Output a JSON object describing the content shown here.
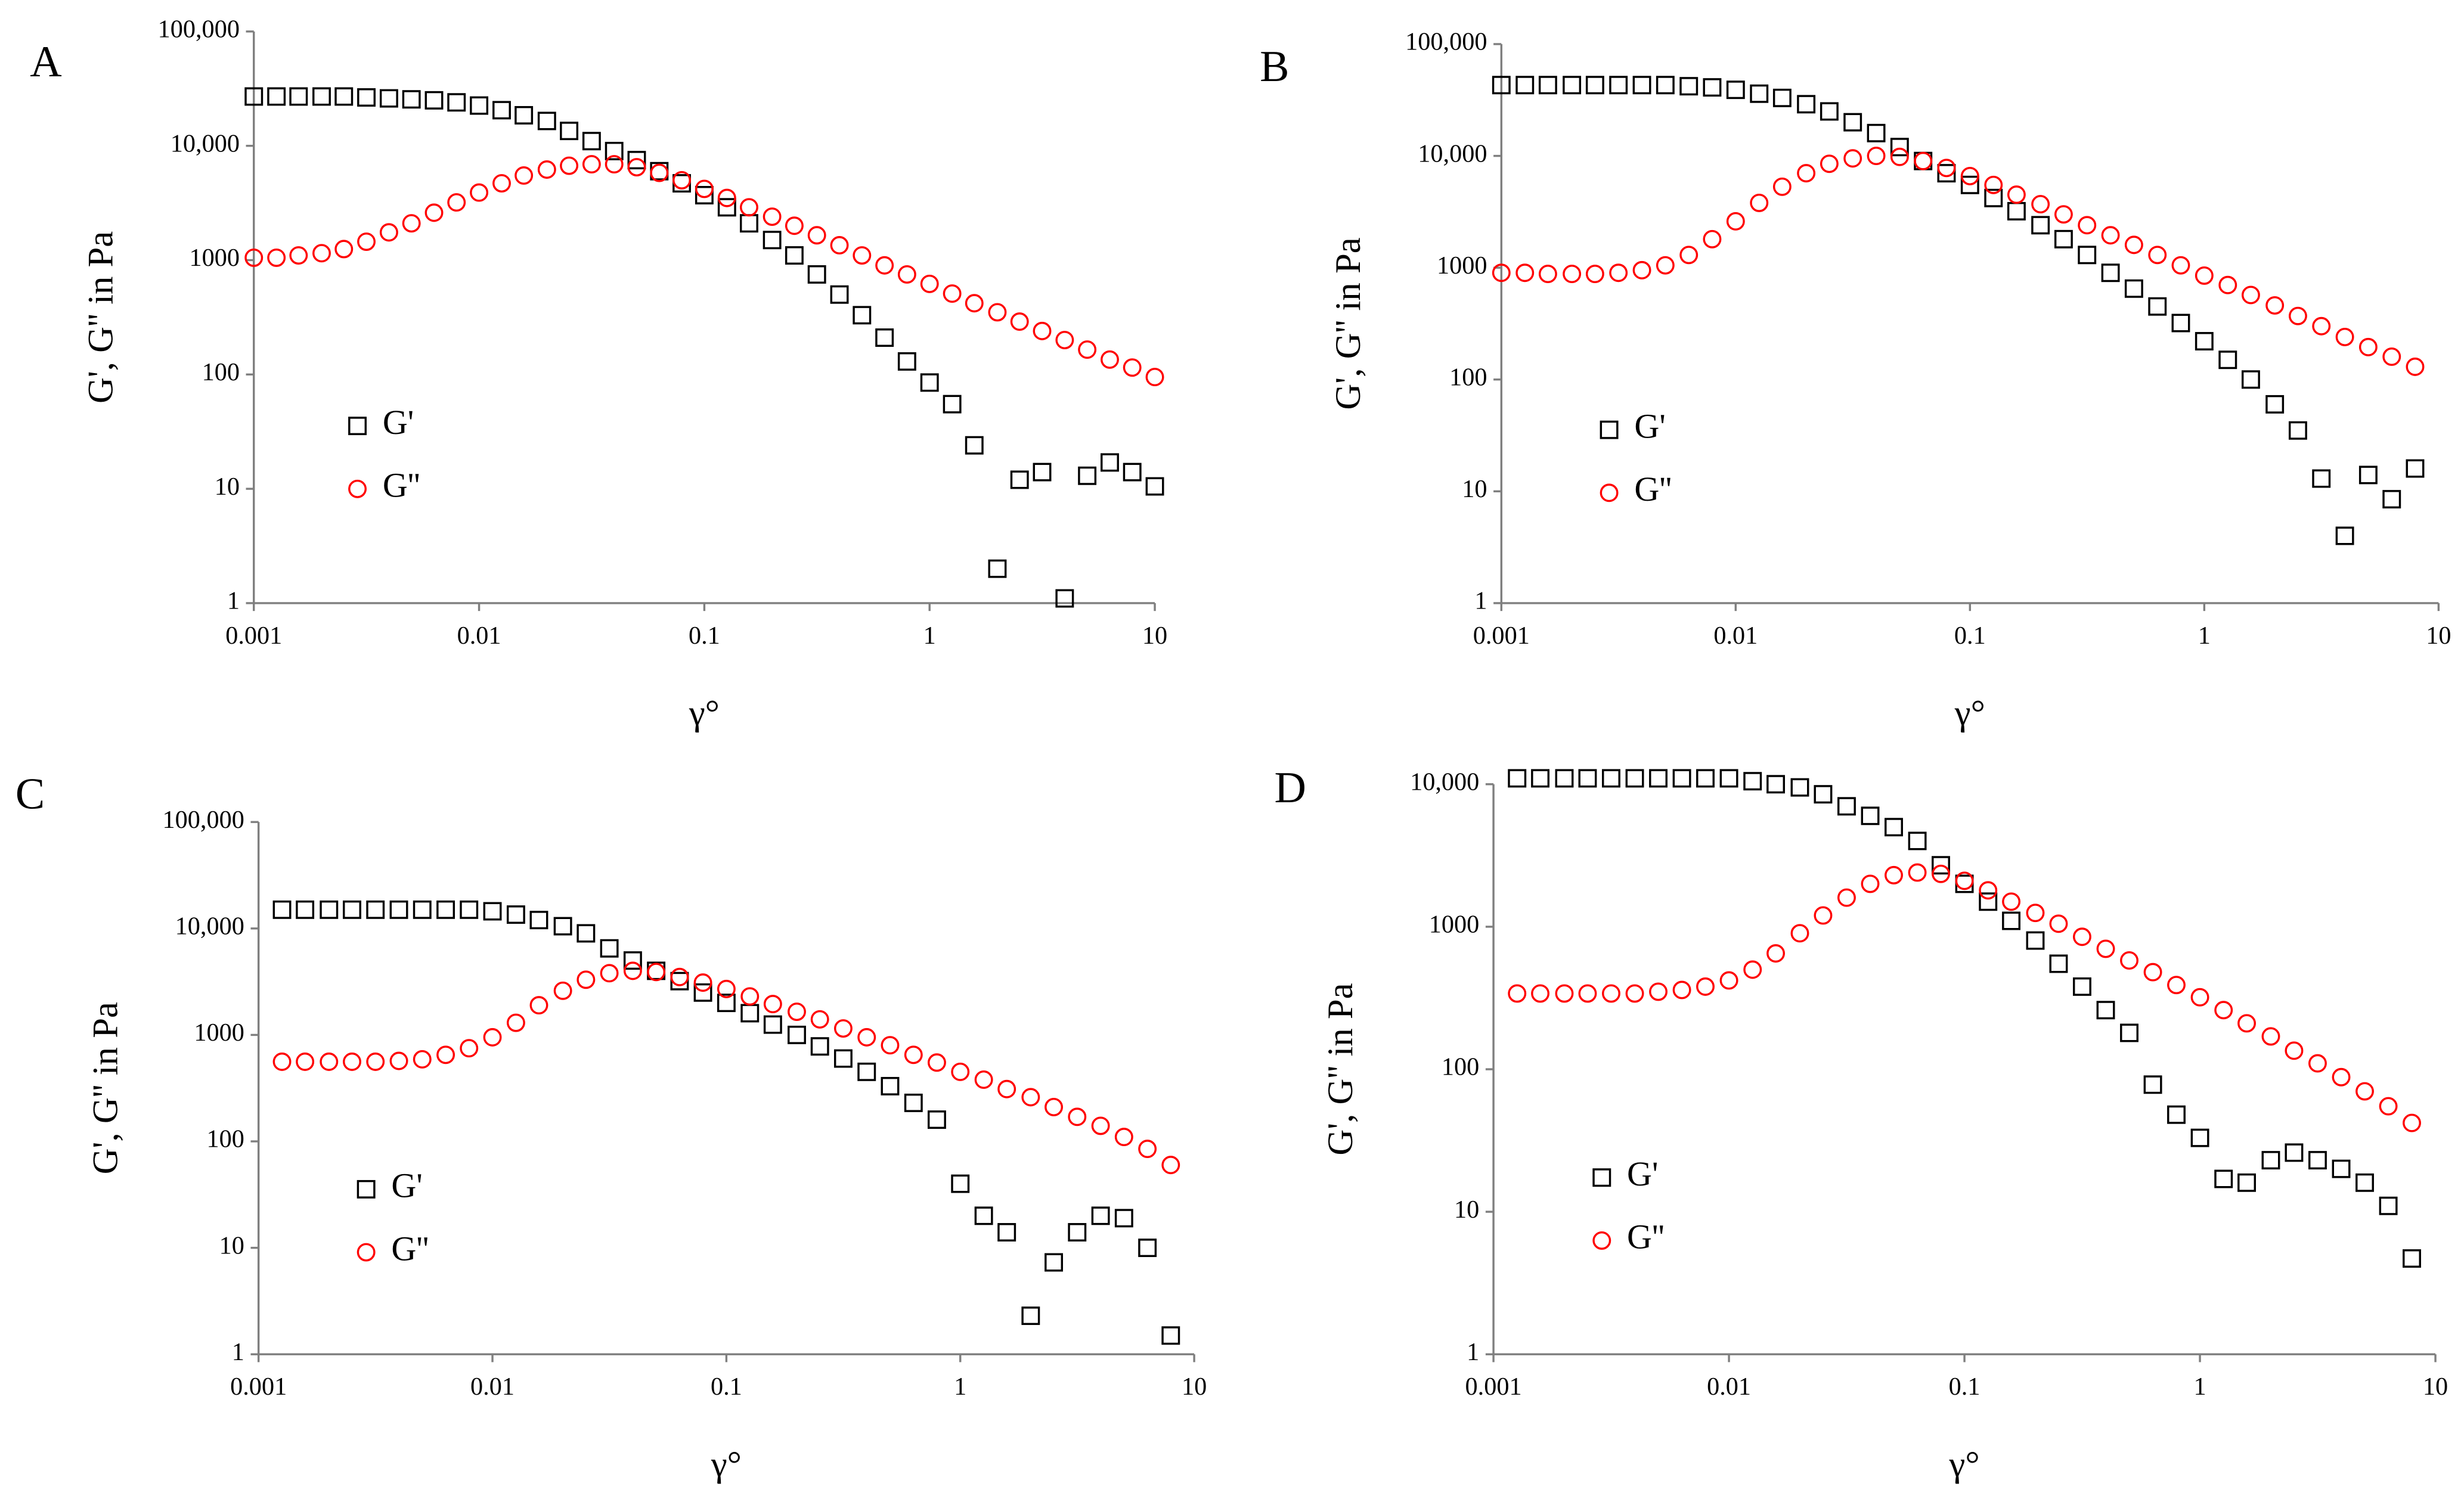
{
  "chart_data": [
    {
      "type": "scatter",
      "label": "A",
      "ylabel": "G', G'' in Pa",
      "xlabel": "γ°",
      "log_x": true,
      "log_y": true,
      "grid": false,
      "legend": "center left",
      "xlim": [
        0.001,
        10
      ],
      "ylim": [
        1,
        100000
      ],
      "xticks": [
        0.001,
        0.01,
        0.1,
        1,
        10
      ],
      "yticks": [
        1,
        10,
        100,
        1000,
        {
          "value": 10000,
          "label": "10,000"
        },
        {
          "value": 100000,
          "label": "100,000"
        }
      ],
      "x": [
        0.001,
        0.00126,
        0.00158,
        0.002,
        0.00251,
        0.00316,
        0.00398,
        0.00501,
        0.00631,
        0.00794,
        0.01,
        0.0126,
        0.0158,
        0.02,
        0.0251,
        0.0316,
        0.0398,
        0.0501,
        0.0631,
        0.0794,
        0.1,
        0.126,
        0.158,
        0.2,
        0.251,
        0.316,
        0.398,
        0.501,
        0.631,
        0.794,
        1,
        1.26,
        1.58,
        2,
        2.51,
        3.16,
        3.98,
        5.01,
        6.31,
        7.94,
        10
      ],
      "series": [
        {
          "name": "G'",
          "color": "#000000",
          "marker": "square",
          "values": [
            27000,
            27000,
            27000,
            27000,
            27000,
            26500,
            26000,
            25500,
            25000,
            24000,
            22500,
            20500,
            18500,
            16500,
            13500,
            11000,
            9000,
            7500,
            6000,
            4700,
            3700,
            2900,
            2100,
            1500,
            1100,
            750,
            500,
            330,
            210,
            130,
            85,
            55,
            24,
            2,
            12,
            14,
            1.1,
            13,
            17,
            14,
            10.5
          ]
        },
        {
          "name": "G''",
          "color": "#ff0000",
          "marker": "circle",
          "values": [
            1050,
            1050,
            1100,
            1150,
            1250,
            1450,
            1750,
            2100,
            2600,
            3200,
            3900,
            4700,
            5500,
            6200,
            6700,
            6900,
            6900,
            6500,
            5800,
            5000,
            4200,
            3500,
            2900,
            2400,
            2000,
            1650,
            1350,
            1100,
            900,
            750,
            620,
            510,
            420,
            350,
            290,
            240,
            200,
            165,
            135,
            115,
            95
          ]
        }
      ]
    },
    {
      "type": "scatter",
      "label": "B",
      "ylabel": "G', G'' in Pa",
      "xlabel": "γ°",
      "log_x": true,
      "log_y": true,
      "grid": false,
      "legend": "center left",
      "xlim": [
        0.001,
        10
      ],
      "ylim": [
        1,
        100000
      ],
      "xticks": [
        0.001,
        0.01,
        0.1,
        1,
        10
      ],
      "yticks": [
        1,
        10,
        100,
        1000,
        {
          "value": 10000,
          "label": "10,000"
        },
        {
          "value": 100000,
          "label": "100,000"
        }
      ],
      "x": [
        0.001,
        0.00126,
        0.00158,
        0.002,
        0.00251,
        0.00316,
        0.00398,
        0.00501,
        0.00631,
        0.00794,
        0.01,
        0.0126,
        0.0158,
        0.02,
        0.0251,
        0.0316,
        0.0398,
        0.0501,
        0.0631,
        0.0794,
        0.1,
        0.126,
        0.158,
        0.2,
        0.251,
        0.316,
        0.398,
        0.501,
        0.631,
        0.794,
        1,
        1.26,
        1.58,
        2,
        2.51,
        3.16,
        3.98,
        5.01,
        6.31,
        7.94
      ],
      "series": [
        {
          "name": "G'",
          "color": "#000000",
          "marker": "square",
          "values": [
            43000,
            43000,
            43000,
            43000,
            43000,
            43000,
            43000,
            43000,
            42000,
            41000,
            39000,
            36000,
            33000,
            29000,
            25000,
            20000,
            16000,
            12000,
            9000,
            7000,
            5500,
            4200,
            3200,
            2400,
            1800,
            1300,
            900,
            650,
            450,
            320,
            220,
            150,
            100,
            60,
            35,
            13,
            4,
            14,
            8.5,
            16
          ]
        },
        {
          "name": "G''",
          "color": "#ff0000",
          "marker": "circle",
          "values": [
            900,
            900,
            880,
            880,
            880,
            900,
            950,
            1050,
            1300,
            1800,
            2600,
            3800,
            5300,
            7000,
            8500,
            9500,
            10000,
            9800,
            9000,
            7800,
            6600,
            5500,
            4500,
            3700,
            3000,
            2400,
            1950,
            1600,
            1300,
            1050,
            850,
            700,
            570,
            460,
            370,
            300,
            240,
            195,
            160,
            130
          ]
        }
      ]
    },
    {
      "type": "scatter",
      "label": "C",
      "ylabel": "G', G'' in Pa",
      "xlabel": "γ°",
      "log_x": true,
      "log_y": true,
      "grid": false,
      "legend": "center left",
      "xlim": [
        0.001,
        10
      ],
      "ylim": [
        1,
        100000
      ],
      "xticks": [
        0.001,
        0.01,
        0.1,
        1,
        10
      ],
      "yticks": [
        1,
        10,
        100,
        1000,
        {
          "value": 10000,
          "label": "10,000"
        },
        {
          "value": 100000,
          "label": "100,000"
        }
      ],
      "x": [
        0.00126,
        0.00158,
        0.002,
        0.00251,
        0.00316,
        0.00398,
        0.00501,
        0.00631,
        0.00794,
        0.01,
        0.0126,
        0.0158,
        0.02,
        0.0251,
        0.0316,
        0.0398,
        0.0501,
        0.0631,
        0.0794,
        0.1,
        0.126,
        0.158,
        0.2,
        0.251,
        0.316,
        0.398,
        0.501,
        0.631,
        0.794,
        1,
        1.26,
        1.58,
        2,
        2.51,
        3.16,
        3.98,
        5.01,
        6.31,
        7.94
      ],
      "series": [
        {
          "name": "G'",
          "color": "#000000",
          "marker": "square",
          "values": [
            15000,
            15000,
            15000,
            15000,
            15000,
            15000,
            15000,
            15000,
            15000,
            14500,
            13500,
            12000,
            10500,
            9000,
            6500,
            5000,
            4000,
            3200,
            2500,
            2000,
            1600,
            1250,
            1000,
            780,
            600,
            450,
            330,
            230,
            160,
            40,
            20,
            14,
            2.3,
            7.3,
            14,
            20,
            19,
            10,
            1.5
          ]
        },
        {
          "name": "G''",
          "color": "#ff0000",
          "marker": "circle",
          "values": [
            560,
            560,
            560,
            560,
            560,
            570,
            590,
            650,
            750,
            950,
            1300,
            1900,
            2600,
            3300,
            3800,
            4000,
            3900,
            3500,
            3100,
            2700,
            2300,
            1950,
            1650,
            1400,
            1150,
            950,
            800,
            650,
            550,
            450,
            380,
            310,
            260,
            210,
            170,
            140,
            110,
            85,
            60
          ]
        }
      ]
    },
    {
      "type": "scatter",
      "label": "D",
      "ylabel": "G', G'' in Pa",
      "xlabel": "γ°",
      "log_x": true,
      "log_y": true,
      "grid": false,
      "legend": "center left",
      "xlim": [
        0.001,
        10
      ],
      "ylim": [
        1,
        10000
      ],
      "xticks": [
        0.001,
        0.01,
        0.1,
        1,
        10
      ],
      "yticks": [
        1,
        10,
        100,
        1000,
        {
          "value": 10000,
          "label": "10,000"
        }
      ],
      "x": [
        0.00126,
        0.00158,
        0.002,
        0.00251,
        0.00316,
        0.00398,
        0.00501,
        0.00631,
        0.00794,
        0.01,
        0.0126,
        0.0158,
        0.02,
        0.0251,
        0.0316,
        0.0398,
        0.0501,
        0.0631,
        0.0794,
        0.1,
        0.126,
        0.158,
        0.2,
        0.251,
        0.316,
        0.398,
        0.501,
        0.631,
        0.794,
        1,
        1.26,
        1.58,
        2,
        2.51,
        3.16,
        3.98,
        5.01,
        6.31,
        7.94
      ],
      "series": [
        {
          "name": "G'",
          "color": "#000000",
          "marker": "square",
          "values": [
            11000,
            11000,
            11000,
            11000,
            11000,
            11000,
            11000,
            11000,
            11000,
            11000,
            10500,
            10000,
            9500,
            8500,
            7000,
            6000,
            5000,
            4000,
            2700,
            2000,
            1500,
            1100,
            800,
            550,
            380,
            260,
            180,
            78,
            48,
            33,
            17,
            16,
            23,
            26,
            23,
            20,
            16,
            11,
            4.7
          ]
        },
        {
          "name": "G''",
          "color": "#ff0000",
          "marker": "circle",
          "values": [
            340,
            340,
            340,
            340,
            340,
            340,
            350,
            360,
            380,
            420,
            500,
            650,
            900,
            1200,
            1600,
            2000,
            2300,
            2400,
            2350,
            2100,
            1800,
            1500,
            1250,
            1050,
            850,
            700,
            580,
            480,
            390,
            320,
            260,
            210,
            170,
            135,
            110,
            88,
            70,
            55,
            42
          ]
        }
      ]
    }
  ]
}
